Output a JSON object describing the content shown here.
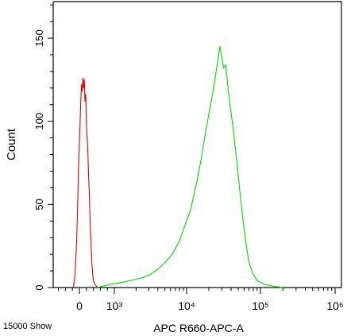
{
  "chart_data": {
    "type": "line",
    "title": "",
    "xlabel": "APC R660-APC-A",
    "ylabel": "Count",
    "footer_note": "15000 Show",
    "grid": false,
    "legend": "none",
    "ylim": [
      0,
      172
    ],
    "y_ticks": [
      0,
      50,
      100,
      150
    ],
    "x_tick_labels": [
      {
        "label": "0",
        "pos": 0
      },
      {
        "label": "10³",
        "pos": 1
      },
      {
        "label": "10⁴",
        "pos": 2
      },
      {
        "label": "10⁵",
        "pos": 3
      },
      {
        "label": "10⁶",
        "pos": 4
      }
    ],
    "x_axis_scale": "logicle (biexponential)",
    "series": [
      {
        "color": "#e60000",
        "points": [
          [
            -0.17,
            0
          ],
          [
            -0.14,
            5
          ],
          [
            -0.12,
            10
          ],
          [
            -0.1,
            18
          ],
          [
            -0.08,
            28
          ],
          [
            -0.06,
            42
          ],
          [
            -0.04,
            58
          ],
          [
            -0.02,
            75
          ],
          [
            0.0,
            88
          ],
          [
            0.02,
            100
          ],
          [
            0.04,
            113
          ],
          [
            0.06,
            122
          ],
          [
            0.08,
            118
          ],
          [
            0.1,
            126
          ],
          [
            0.12,
            120
          ],
          [
            0.14,
            125
          ],
          [
            0.16,
            112
          ],
          [
            0.18,
            116
          ],
          [
            0.2,
            98
          ],
          [
            0.22,
            90
          ],
          [
            0.24,
            82
          ],
          [
            0.26,
            70
          ],
          [
            0.28,
            58
          ],
          [
            0.3,
            45
          ],
          [
            0.32,
            33
          ],
          [
            0.34,
            22
          ],
          [
            0.36,
            14
          ],
          [
            0.38,
            8
          ],
          [
            0.4,
            4
          ],
          [
            0.44,
            2
          ],
          [
            0.48,
            1
          ],
          [
            0.52,
            0
          ]
        ]
      },
      {
        "color": "#00dd00",
        "points": [
          [
            0.5,
            0
          ],
          [
            0.7,
            1
          ],
          [
            0.9,
            2
          ],
          [
            1.1,
            3
          ],
          [
            1.3,
            5
          ],
          [
            1.4,
            6
          ],
          [
            1.5,
            8
          ],
          [
            1.6,
            11
          ],
          [
            1.7,
            15
          ],
          [
            1.8,
            20
          ],
          [
            1.85,
            24
          ],
          [
            1.9,
            28
          ],
          [
            1.95,
            34
          ],
          [
            2.0,
            40
          ],
          [
            2.05,
            46
          ],
          [
            2.1,
            56
          ],
          [
            2.15,
            66
          ],
          [
            2.2,
            78
          ],
          [
            2.25,
            92
          ],
          [
            2.3,
            104
          ],
          [
            2.35,
            116
          ],
          [
            2.38,
            124
          ],
          [
            2.42,
            136
          ],
          [
            2.45,
            145
          ],
          [
            2.48,
            138
          ],
          [
            2.5,
            132
          ],
          [
            2.53,
            134
          ],
          [
            2.56,
            120
          ],
          [
            2.6,
            106
          ],
          [
            2.64,
            92
          ],
          [
            2.68,
            76
          ],
          [
            2.72,
            58
          ],
          [
            2.76,
            42
          ],
          [
            2.8,
            28
          ],
          [
            2.84,
            16
          ],
          [
            2.9,
            8
          ],
          [
            2.96,
            4
          ],
          [
            3.05,
            2
          ],
          [
            3.15,
            1
          ],
          [
            3.3,
            0
          ]
        ]
      }
    ]
  }
}
